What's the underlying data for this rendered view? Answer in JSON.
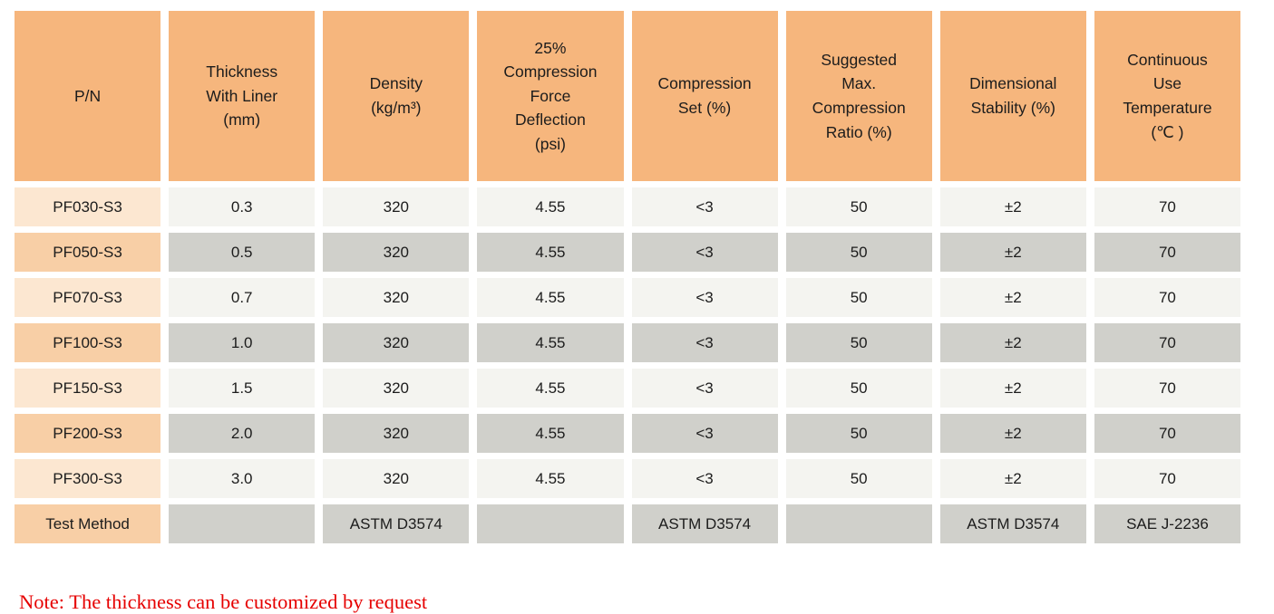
{
  "table": {
    "columns": [
      {
        "label": "P/N"
      },
      {
        "label": "Thickness\nWith Liner\n(mm)"
      },
      {
        "label": "Density\n(kg/m³)"
      },
      {
        "label": "25%\nCompression\nForce\nDeflection\n(psi)"
      },
      {
        "label": "Compression\nSet (%)"
      },
      {
        "label": "Suggested\nMax.\nCompression\nRatio (%)"
      },
      {
        "label": "Dimensional\nStability (%)"
      },
      {
        "label": "Continuous\nUse\nTemperature\n(℃ )"
      }
    ],
    "rows": [
      {
        "pn": "PF030-S3",
        "values": [
          "0.3",
          "320",
          "4.55",
          "<3",
          "50",
          "±2",
          "70"
        ]
      },
      {
        "pn": "PF050-S3",
        "values": [
          "0.5",
          "320",
          "4.55",
          "<3",
          "50",
          "±2",
          "70"
        ]
      },
      {
        "pn": "PF070-S3",
        "values": [
          "0.7",
          "320",
          "4.55",
          "<3",
          "50",
          "±2",
          "70"
        ]
      },
      {
        "pn": "PF100-S3",
        "values": [
          "1.0",
          "320",
          "4.55",
          "<3",
          "50",
          "±2",
          "70"
        ]
      },
      {
        "pn": "PF150-S3",
        "values": [
          "1.5",
          "320",
          "4.55",
          "<3",
          "50",
          "±2",
          "70"
        ]
      },
      {
        "pn": "PF200-S3",
        "values": [
          "2.0",
          "320",
          "4.55",
          "<3",
          "50",
          "±2",
          "70"
        ]
      },
      {
        "pn": "PF300-S3",
        "values": [
          "3.0",
          "320",
          "4.55",
          "<3",
          "50",
          "±2",
          "70"
        ]
      }
    ],
    "test_method": {
      "label": "Test Method",
      "values": [
        "",
        "ASTM D3574",
        "",
        "ASTM D3574",
        "",
        "ASTM D3574",
        "SAE J-2236"
      ]
    }
  },
  "note": "Note: The thickness can be customized by request",
  "colors": {
    "header_bg": "#f6b67d",
    "pn_light_bg": "#fce7d1",
    "pn_dark_bg": "#f8cfa6",
    "row_light_bg": "#f4f4f0",
    "row_dark_bg": "#d0d0cb",
    "note_text": "#e60000",
    "body_text": "#1c1c1c"
  }
}
